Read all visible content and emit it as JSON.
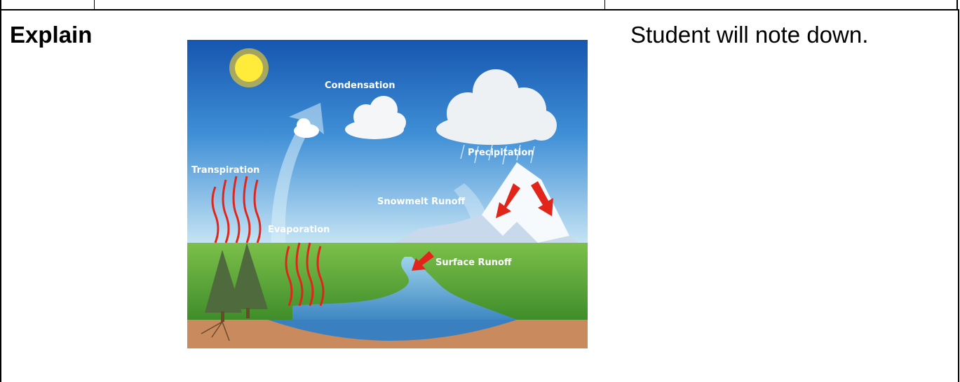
{
  "row": {
    "stage": "Explain",
    "student_activity": "Student will note down.",
    "diagram": {
      "labels": [
        "Condensation",
        "Precipitation",
        "Transpiration",
        "Snowmelt Runoff",
        "Evaporation",
        "Surface Runoff"
      ]
    }
  }
}
